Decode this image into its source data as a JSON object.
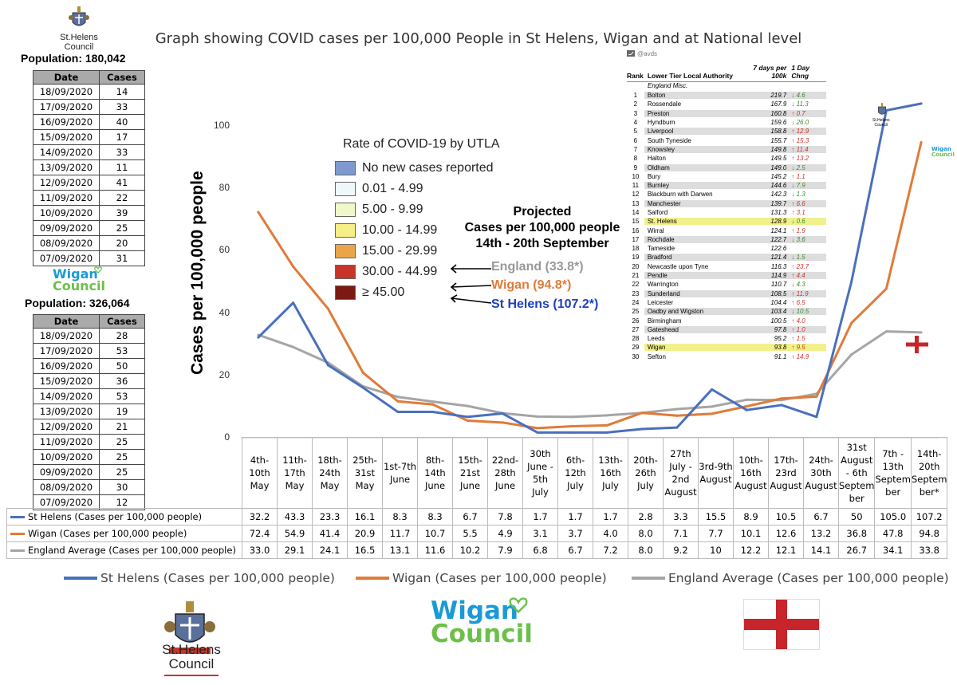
{
  "title": "Graph showing COVID cases per 100,000 People in St Helens, Wigan and at National level",
  "st_helens_council": {
    "name_line1": "St.Helens",
    "name_line2": "Council",
    "population": "Population: 180,042",
    "table": {
      "headers": [
        "Date",
        "Cases"
      ],
      "rows": [
        [
          "18/09/2020",
          "14"
        ],
        [
          "17/09/2020",
          "33"
        ],
        [
          "16/09/2020",
          "40"
        ],
        [
          "15/09/2020",
          "17"
        ],
        [
          "14/09/2020",
          "33"
        ],
        [
          "13/09/2020",
          "11"
        ],
        [
          "12/09/2020",
          "41"
        ],
        [
          "11/09/2020",
          "22"
        ],
        [
          "10/09/2020",
          "39"
        ],
        [
          "09/09/2020",
          "25"
        ],
        [
          "08/09/2020",
          "20"
        ],
        [
          "07/09/2020",
          "31"
        ]
      ]
    }
  },
  "wigan_council": {
    "logo_line1": "Wigan",
    "logo_line2": "Council",
    "population": "Population: 326,064",
    "table": {
      "headers": [
        "Date",
        "Cases"
      ],
      "rows": [
        [
          "18/09/2020",
          "28"
        ],
        [
          "17/09/2020",
          "53"
        ],
        [
          "16/09/2020",
          "50"
        ],
        [
          "15/09/2020",
          "36"
        ],
        [
          "14/09/2020",
          "53"
        ],
        [
          "13/09/2020",
          "19"
        ],
        [
          "12/09/2020",
          "21"
        ],
        [
          "11/09/2020",
          "25"
        ],
        [
          "10/09/2020",
          "25"
        ],
        [
          "09/09/2020",
          "25"
        ],
        [
          "08/09/2020",
          "30"
        ],
        [
          "07/09/2020",
          "12"
        ]
      ]
    }
  },
  "utla_legend": {
    "title": "Rate of COVID-19 by UTLA",
    "items": [
      {
        "label": "No new cases reported",
        "color": "#7f99cf"
      },
      {
        "label": "0.01 - 4.99",
        "color": "#eef8fb"
      },
      {
        "label": "5.00 - 9.99",
        "color": "#eef8c8"
      },
      {
        "label": "10.00 - 14.99",
        "color": "#f6ee86"
      },
      {
        "label": "15.00 - 29.99",
        "color": "#eaa54a"
      },
      {
        "label": "30.00 - 44.99",
        "color": "#c9342a"
      },
      {
        "label": "≥ 45.00",
        "color": "#7b1a14"
      }
    ]
  },
  "projection": {
    "line1": "Projected",
    "line2": "Cases per 100,000 people",
    "line3": "14th - 20th September",
    "england": "England (33.8*)",
    "wigan": "Wigan (94.8*)",
    "st_helens": "St Helens (107.2*)"
  },
  "rank_table": {
    "handle": "@avds",
    "col_rank": "Rank",
    "col_name": "Lower Tier Local Authority",
    "col_rate": "7 days per 100k",
    "col_change": "1 Day Chng",
    "section": "England Misc.",
    "rows": [
      {
        "rank": "1",
        "name": "Bolton",
        "rate": "219.7",
        "change": "4.6",
        "dir": "down"
      },
      {
        "rank": "2",
        "name": "Rossendale",
        "rate": "167.9",
        "change": "11.3",
        "dir": "down"
      },
      {
        "rank": "3",
        "name": "Preston",
        "rate": "160.8",
        "change": "0.7",
        "dir": "up"
      },
      {
        "rank": "4",
        "name": "Hyndburn",
        "rate": "159.6",
        "change": "26.0",
        "dir": "down"
      },
      {
        "rank": "5",
        "name": "Liverpool",
        "rate": "158.8",
        "change": "12.9",
        "dir": "up"
      },
      {
        "rank": "6",
        "name": "South Tyneside",
        "rate": "155.7",
        "change": "15.3",
        "dir": "up"
      },
      {
        "rank": "7",
        "name": "Knowsley",
        "rate": "149.8",
        "change": "11.4",
        "dir": "up"
      },
      {
        "rank": "8",
        "name": "Halton",
        "rate": "149.5",
        "change": "13.2",
        "dir": "up"
      },
      {
        "rank": "9",
        "name": "Oldham",
        "rate": "149.0",
        "change": "2.5",
        "dir": "down"
      },
      {
        "rank": "10",
        "name": "Bury",
        "rate": "145.2",
        "change": "1.1",
        "dir": "up"
      },
      {
        "rank": "11",
        "name": "Burnley",
        "rate": "144.6",
        "change": "7.9",
        "dir": "down"
      },
      {
        "rank": "12",
        "name": "Blackburn with Darwen",
        "rate": "142.3",
        "change": "1.3",
        "dir": "down"
      },
      {
        "rank": "13",
        "name": "Manchester",
        "rate": "139.7",
        "change": "6.6",
        "dir": "up"
      },
      {
        "rank": "14",
        "name": "Salford",
        "rate": "131.3",
        "change": "3.1",
        "dir": "up"
      },
      {
        "rank": "15",
        "name": "St. Helens",
        "rate": "128.9",
        "change": "0.6",
        "dir": "down"
      },
      {
        "rank": "16",
        "name": "Wirral",
        "rate": "124.1",
        "change": "1.9",
        "dir": "up"
      },
      {
        "rank": "17",
        "name": "Rochdale",
        "rate": "122.7",
        "change": "3.6",
        "dir": "down"
      },
      {
        "rank": "18",
        "name": "Tameside",
        "rate": "122.6",
        "change": "",
        "dir": ""
      },
      {
        "rank": "19",
        "name": "Bradford",
        "rate": "121.4",
        "change": "1.5",
        "dir": "down"
      },
      {
        "rank": "20",
        "name": "Newcastle upon Tyne",
        "rate": "116.3",
        "change": "23.7",
        "dir": "up"
      },
      {
        "rank": "21",
        "name": "Pendle",
        "rate": "114.9",
        "change": "4.4",
        "dir": "up"
      },
      {
        "rank": "22",
        "name": "Warrington",
        "rate": "110.7",
        "change": "4.3",
        "dir": "down"
      },
      {
        "rank": "23",
        "name": "Sunderland",
        "rate": "108.5",
        "change": "11.9",
        "dir": "up"
      },
      {
        "rank": "24",
        "name": "Leicester",
        "rate": "104.4",
        "change": "6.5",
        "dir": "up"
      },
      {
        "rank": "25",
        "name": "Oadby and Wigston",
        "rate": "103.4",
        "change": "10.5",
        "dir": "down"
      },
      {
        "rank": "26",
        "name": "Birmingham",
        "rate": "100.5",
        "change": "4.0",
        "dir": "up"
      },
      {
        "rank": "27",
        "name": "Gateshead",
        "rate": "97.8",
        "change": "1.0",
        "dir": "up"
      },
      {
        "rank": "28",
        "name": "Leeds",
        "rate": "95.2",
        "change": "1.5",
        "dir": "up"
      },
      {
        "rank": "29",
        "name": "Wigan",
        "rate": "93.8",
        "change": "9.5",
        "dir": "up"
      },
      {
        "rank": "30",
        "name": "Sefton",
        "rate": "91.1",
        "change": "14.9",
        "dir": "up"
      }
    ]
  },
  "chart_data": {
    "type": "line",
    "title": "Graph showing COVID cases per 100,000 People in St Helens, Wigan and at National level",
    "ylabel": "Cases per 100,000 people",
    "ylim": [
      0,
      110
    ],
    "yticks": [
      0,
      20,
      40,
      60,
      80,
      100
    ],
    "categories": [
      "4th-10th May",
      "11th-17th May",
      "18th-24th May",
      "25th-31st May",
      "1st-7th June",
      "8th-14th June",
      "15th-21st June",
      "22nd-28th June",
      "30th June - 5th July",
      "6th-12th July",
      "13th-16th July",
      "20th-26th July",
      "27th July - 2nd August",
      "3rd-9th August",
      "10th-16th August",
      "17th-23rd August",
      "24th-30th August",
      "31st August - 6th September",
      "7th - 13th September",
      "14th-20th September*"
    ],
    "category_lines": [
      [
        "4th-",
        "10th",
        "May"
      ],
      [
        "11th-",
        "17th",
        "May"
      ],
      [
        "18th-",
        "24th",
        "May"
      ],
      [
        "25th-",
        "31st",
        "May"
      ],
      [
        "1st-7th",
        "June"
      ],
      [
        "8th-",
        "14th",
        "June"
      ],
      [
        "15th-",
        "21st",
        "June"
      ],
      [
        "22nd-",
        "28th",
        "June"
      ],
      [
        "30th",
        "June -",
        "5th July"
      ],
      [
        "6th-",
        "12th",
        "July"
      ],
      [
        "13th-",
        "16th",
        "July"
      ],
      [
        "20th-",
        "26th",
        "July"
      ],
      [
        "27th",
        "July -",
        "2nd",
        "August"
      ],
      [
        "3rd-9th",
        "August"
      ],
      [
        "10th-",
        "16th",
        "August"
      ],
      [
        "17th-",
        "23rd",
        "August"
      ],
      [
        "24th-",
        "30th",
        "August"
      ],
      [
        "31st",
        "August",
        "- 6th",
        "Septem",
        "ber"
      ],
      [
        "7th -",
        "13th",
        "Septem",
        "ber"
      ],
      [
        "14th-",
        "20th",
        "Septem",
        "ber*"
      ]
    ],
    "series": [
      {
        "name": "St Helens (Cases per 100,000 people)",
        "color": "#4a6fbd",
        "values": [
          32.2,
          43.3,
          23.3,
          16.1,
          8.3,
          8.3,
          6.7,
          7.8,
          1.7,
          1.7,
          1.7,
          2.8,
          3.3,
          15.5,
          8.9,
          10.5,
          6.7,
          50,
          105.0,
          107.2
        ],
        "labels": [
          "32.2",
          "43.3",
          "23.3",
          "16.1",
          "8.3",
          "8.3",
          "6.7",
          "7.8",
          "1.7",
          "1.7",
          "1.7",
          "2.8",
          "3.3",
          "15.5",
          "8.9",
          "10.5",
          "6.7",
          "50",
          "105.0",
          "107.2"
        ]
      },
      {
        "name": "Wigan (Cases per 100,000 people)",
        "color": "#e07b39",
        "values": [
          72.4,
          54.9,
          41.4,
          20.9,
          11.7,
          10.7,
          5.5,
          4.9,
          3.1,
          3.7,
          4.0,
          8.0,
          7.1,
          7.7,
          10.1,
          12.6,
          13.2,
          36.8,
          47.8,
          94.8
        ],
        "labels": [
          "72.4",
          "54.9",
          "41.4",
          "20.9",
          "11.7",
          "10.7",
          "5.5",
          "4.9",
          "3.1",
          "3.7",
          "4.0",
          "8.0",
          "7.1",
          "7.7",
          "10.1",
          "12.6",
          "13.2",
          "36.8",
          "47.8",
          "94.8"
        ]
      },
      {
        "name": "England Average (Cases per 100,000 people)",
        "color": "#a5a5a5",
        "values": [
          33.0,
          29.1,
          24.1,
          16.5,
          13.1,
          11.6,
          10.2,
          7.9,
          6.8,
          6.7,
          7.2,
          8.0,
          9.2,
          10,
          12.2,
          12.1,
          14.1,
          26.7,
          34.1,
          33.8
        ],
        "labels": [
          "33.0",
          "29.1",
          "24.1",
          "16.5",
          "13.1",
          "11.6",
          "10.2",
          "7.9",
          "6.8",
          "6.7",
          "7.2",
          "8.0",
          "9.2",
          "10",
          "12.2",
          "12.1",
          "14.1",
          "26.7",
          "34.1",
          "33.8"
        ]
      }
    ],
    "legend": "bottom",
    "grid": false
  },
  "colors": {
    "st_helens": "#4a6fbd",
    "wigan": "#e07b39",
    "england": "#a5a5a5",
    "england_annot": "#999999",
    "wigan_annot": "#e07b39",
    "st_helens_annot": "#1f3fbf",
    "flag_red": "#c8242b"
  },
  "icons": [
    "st-helens-crest-icon",
    "wigan-heart-icon",
    "england-flag-icon",
    "twitter-bird-icon"
  ]
}
